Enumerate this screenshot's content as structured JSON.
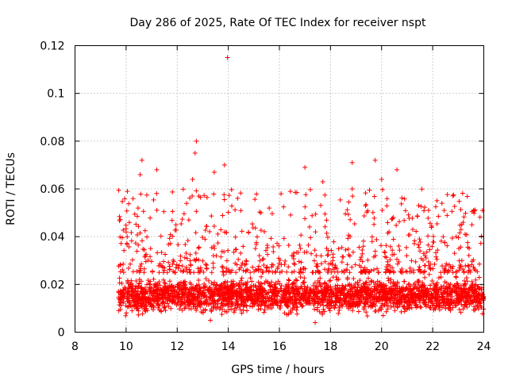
{
  "chart_data": {
    "type": "scatter",
    "title": "Day 286 of 2025, Rate Of TEC Index for receiver nspt",
    "xlabel": "GPS time / hours",
    "ylabel": "ROTI / TECUs",
    "xlim": [
      8,
      24
    ],
    "ylim": [
      0,
      0.12
    ],
    "xticks": [
      8,
      10,
      12,
      14,
      16,
      18,
      20,
      22,
      24
    ],
    "yticks": [
      0,
      0.02,
      0.04,
      0.06,
      0.08,
      0.1,
      0.12
    ],
    "xtick_labels": [
      "8",
      "10",
      "12",
      "14",
      "16",
      "18",
      "20",
      "22",
      "24"
    ],
    "ytick_labels": [
      "0",
      "0.02",
      "0.04",
      "0.06",
      "0.08",
      "0.1",
      "0.12"
    ],
    "grid": true,
    "marker": "+",
    "color": "#ff0000",
    "series": [
      {
        "name": "ROTI",
        "x_range": [
          9.7,
          24.0
        ],
        "y_range": [
          0.003,
          0.115
        ],
        "typical_band": [
          0.008,
          0.025
        ],
        "notable_points": [
          {
            "x": 13.97,
            "y": 0.115
          },
          {
            "x": 12.75,
            "y": 0.08
          },
          {
            "x": 12.7,
            "y": 0.075
          },
          {
            "x": 10.62,
            "y": 0.072
          },
          {
            "x": 19.75,
            "y": 0.072
          },
          {
            "x": 18.85,
            "y": 0.071
          },
          {
            "x": 13.85,
            "y": 0.07
          },
          {
            "x": 17.0,
            "y": 0.069
          },
          {
            "x": 20.6,
            "y": 0.068
          },
          {
            "x": 11.2,
            "y": 0.068
          },
          {
            "x": 13.45,
            "y": 0.067
          },
          {
            "x": 12.6,
            "y": 0.064
          },
          {
            "x": 17.7,
            "y": 0.063
          },
          {
            "x": 20.0,
            "y": 0.064
          },
          {
            "x": 10.55,
            "y": 0.066
          },
          {
            "x": 18.85,
            "y": 0.06
          },
          {
            "x": 10.05,
            "y": 0.059
          },
          {
            "x": 21.45,
            "y": 0.053
          },
          {
            "x": 15.6,
            "y": 0.052
          },
          {
            "x": 23.95,
            "y": 0.051
          },
          {
            "x": 22.45,
            "y": 0.051
          },
          {
            "x": 17.4,
            "y": 0.004
          },
          {
            "x": 13.3,
            "y": 0.005
          }
        ]
      }
    ]
  }
}
